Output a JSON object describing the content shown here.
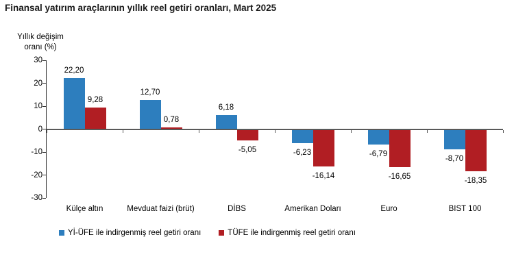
{
  "title": "Finansal yatırım araçlarının yıllık reel getiri oranları, Mart 2025",
  "y_axis": {
    "label_line1": "Yıllık  değişim",
    "label_line2": "oranı (%)",
    "tick_labels": [
      "30",
      "20",
      "10",
      "0",
      "-10",
      "-20",
      "-30"
    ],
    "tick_values": [
      30,
      20,
      10,
      0,
      -10,
      -20,
      -30
    ]
  },
  "legend": {
    "items": [
      {
        "label": "Yİ-ÜFE ile indirgenmiş reel getiri oranı",
        "color": "#2D7EBE"
      },
      {
        "label": "TÜFE ile indirgenmiş reel getiri oranı",
        "color": "#B11E23"
      }
    ]
  },
  "chart_data": {
    "type": "bar",
    "title": "Finansal yatırım araçlarının yıllık reel getiri oranları, Mart 2025",
    "xlabel": "",
    "ylabel": "Yıllık değişim oranı (%)",
    "ylim": [
      -30,
      30
    ],
    "ytick_step": 10,
    "grid": false,
    "legend_position": "bottom",
    "categories": [
      "Külçe altın",
      "Mevduat faizi (brüt)",
      "DİBS",
      "Amerikan Doları",
      "Euro",
      "BIST 100"
    ],
    "series": [
      {
        "name": "Yİ-ÜFE ile indirgenmiş reel getiri oranı",
        "color": "#2D7EBE",
        "values": [
          22.2,
          12.7,
          6.18,
          -6.23,
          -6.79,
          -8.7
        ],
        "value_labels": [
          "22,20",
          "12,70",
          "6,18",
          "-6,23",
          "-6,79",
          "-8,70"
        ]
      },
      {
        "name": "TÜFE ile indirgenmiş reel getiri oranı",
        "color": "#B11E23",
        "values": [
          9.28,
          0.78,
          -5.05,
          -16.14,
          -16.65,
          -18.35
        ],
        "value_labels": [
          "9,28",
          "0,78",
          "-5,05",
          "-16,14",
          "-16,65",
          "-18,35"
        ]
      }
    ]
  }
}
